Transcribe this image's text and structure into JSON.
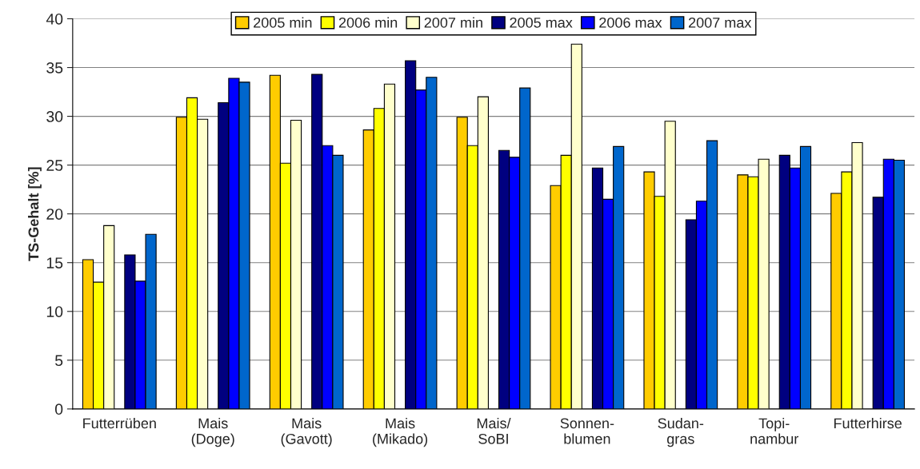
{
  "chart_data": {
    "type": "bar",
    "ylabel": "TS-Gehalt [%]",
    "categories": [
      "Futterrüben",
      "Mais\n(Doge)",
      "Mais\n(Gavott)",
      "Mais\n(Mikado)",
      "Mais/\nSoBI",
      "Sonnen-\nblumen",
      "Sudan-\ngras",
      "Topi-\nnambur",
      "Futterhirse"
    ],
    "series": [
      {
        "name": "2005 min",
        "color": "#ffcc00",
        "values": [
          15.3,
          29.9,
          34.2,
          28.6,
          29.9,
          22.9,
          24.3,
          24.0,
          22.1
        ]
      },
      {
        "name": "2006 min",
        "color": "#ffff00",
        "values": [
          13.0,
          31.9,
          25.2,
          30.8,
          27.0,
          26.0,
          21.8,
          23.8,
          24.3
        ]
      },
      {
        "name": "2007 min",
        "color": "#ffffcc",
        "values": [
          18.8,
          29.7,
          29.6,
          33.3,
          32.0,
          37.4,
          29.5,
          25.6,
          27.3
        ]
      },
      {
        "name": "2005 max",
        "color": "#000080",
        "values": [
          15.8,
          31.4,
          34.3,
          35.7,
          26.5,
          24.7,
          19.4,
          26.0,
          21.7
        ]
      },
      {
        "name": "2006 max",
        "color": "#0000ff",
        "values": [
          13.1,
          33.9,
          27.0,
          32.7,
          25.8,
          21.5,
          21.3,
          24.7,
          25.6
        ]
      },
      {
        "name": "2007 max",
        "color": "#0066cc",
        "values": [
          17.9,
          33.5,
          26.0,
          34.0,
          32.9,
          26.9,
          27.5,
          26.9,
          25.5
        ]
      }
    ],
    "ylim": [
      0,
      40
    ],
    "yticks": [
      0,
      5,
      10,
      15,
      20,
      25,
      30,
      35,
      40
    ],
    "grid": "y",
    "legend": "top"
  }
}
